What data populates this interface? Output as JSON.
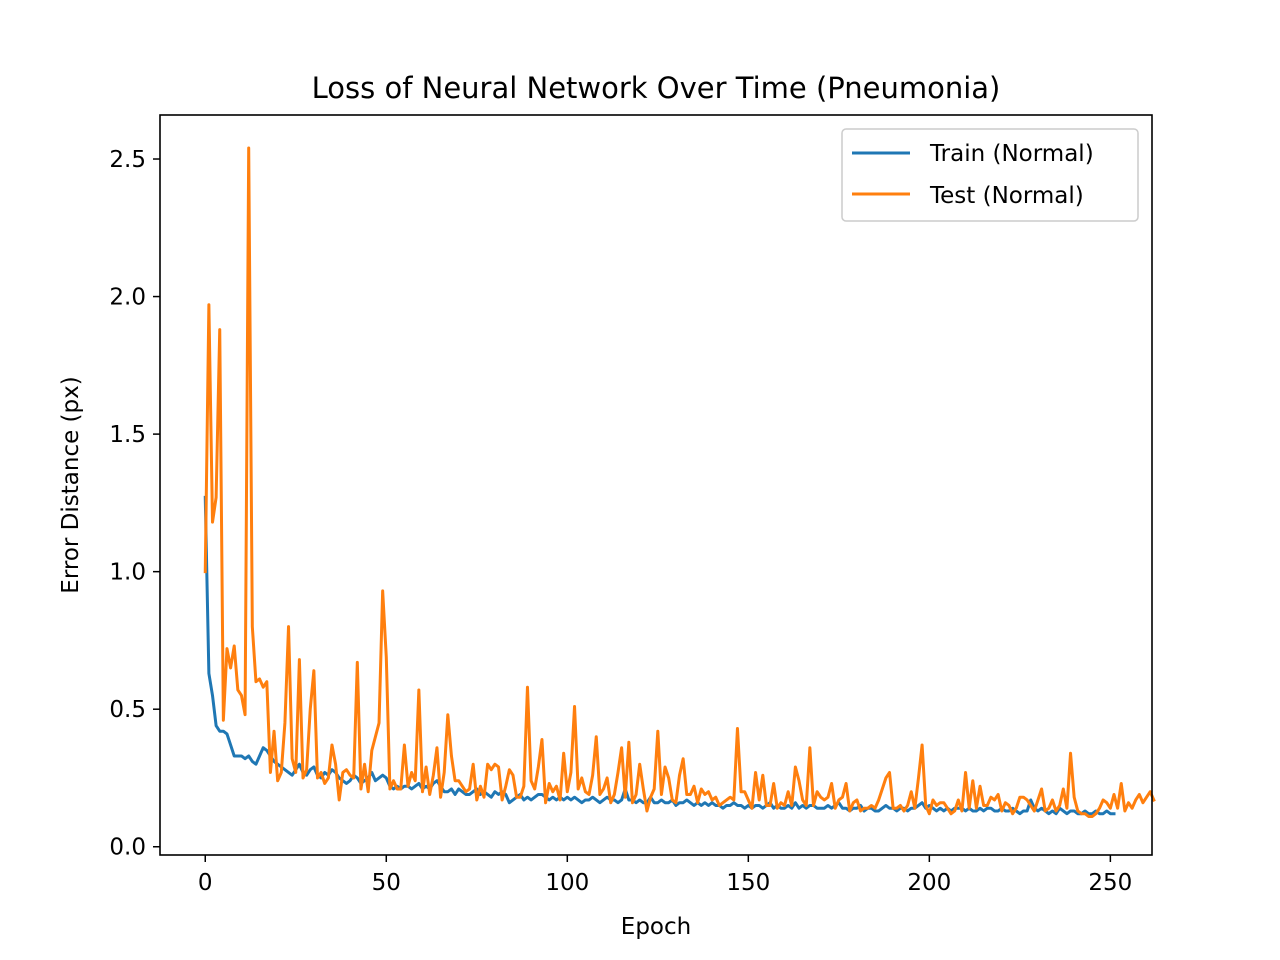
{
  "chart_data": {
    "type": "line",
    "title": "Loss of Neural Network Over Time (Pneumonia)",
    "xlabel": "Epoch",
    "ylabel": "Error Distance (px)",
    "xlim": [
      -12.5,
      261.5
    ],
    "ylim": [
      -0.03,
      2.66
    ],
    "xticks": [
      0,
      50,
      100,
      150,
      200,
      250
    ],
    "yticks": [
      0.0,
      0.5,
      1.0,
      1.5,
      2.0,
      2.5
    ],
    "xtick_labels": [
      "0",
      "50",
      "100",
      "150",
      "200",
      "250"
    ],
    "ytick_labels": [
      "0.0",
      "0.5",
      "1.0",
      "1.5",
      "2.0",
      "2.5"
    ],
    "grid": false,
    "legend_position": "upper right",
    "x_range": [
      0,
      249
    ],
    "series": [
      {
        "name": "Train (Normal)",
        "color": "#1f77b4",
        "values": [
          1.27,
          0.63,
          0.55,
          0.44,
          0.42,
          0.42,
          0.41,
          0.37,
          0.33,
          0.33,
          0.33,
          0.32,
          0.33,
          0.31,
          0.3,
          0.33,
          0.36,
          0.35,
          0.33,
          0.31,
          0.3,
          0.29,
          0.28,
          0.27,
          0.26,
          0.28,
          0.3,
          0.27,
          0.26,
          0.28,
          0.29,
          0.26,
          0.25,
          0.27,
          0.26,
          0.28,
          0.27,
          0.25,
          0.24,
          0.23,
          0.24,
          0.26,
          0.25,
          0.23,
          0.24,
          0.25,
          0.27,
          0.24,
          0.25,
          0.26,
          0.25,
          0.22,
          0.21,
          0.22,
          0.21,
          0.22,
          0.22,
          0.21,
          0.22,
          0.23,
          0.21,
          0.22,
          0.21,
          0.23,
          0.24,
          0.22,
          0.2,
          0.2,
          0.21,
          0.19,
          0.21,
          0.2,
          0.19,
          0.19,
          0.2,
          0.21,
          0.19,
          0.2,
          0.19,
          0.18,
          0.2,
          0.19,
          0.2,
          0.19,
          0.16,
          0.17,
          0.18,
          0.19,
          0.17,
          0.18,
          0.17,
          0.18,
          0.19,
          0.19,
          0.18,
          0.17,
          0.18,
          0.17,
          0.18,
          0.17,
          0.18,
          0.17,
          0.18,
          0.17,
          0.16,
          0.17,
          0.17,
          0.18,
          0.17,
          0.16,
          0.17,
          0.18,
          0.17,
          0.17,
          0.16,
          0.17,
          0.21,
          0.17,
          0.17,
          0.16,
          0.17,
          0.16,
          0.16,
          0.18,
          0.16,
          0.16,
          0.17,
          0.16,
          0.16,
          0.17,
          0.15,
          0.16,
          0.16,
          0.17,
          0.16,
          0.15,
          0.16,
          0.15,
          0.16,
          0.15,
          0.16,
          0.15,
          0.15,
          0.14,
          0.15,
          0.15,
          0.16,
          0.15,
          0.15,
          0.14,
          0.15,
          0.14,
          0.15,
          0.15,
          0.14,
          0.15,
          0.16,
          0.14,
          0.15,
          0.14,
          0.14,
          0.15,
          0.14,
          0.16,
          0.14,
          0.15,
          0.14,
          0.15,
          0.15,
          0.14,
          0.14,
          0.14,
          0.15,
          0.14,
          0.15,
          0.16,
          0.14,
          0.14,
          0.13,
          0.14,
          0.14,
          0.15,
          0.13,
          0.14,
          0.14,
          0.13,
          0.13,
          0.14,
          0.15,
          0.14,
          0.14,
          0.13,
          0.14,
          0.14,
          0.13,
          0.14,
          0.14,
          0.15,
          0.16,
          0.14,
          0.15,
          0.14,
          0.13,
          0.14,
          0.13,
          0.14,
          0.13,
          0.14,
          0.14,
          0.14,
          0.13,
          0.14,
          0.13,
          0.13,
          0.14,
          0.13,
          0.14,
          0.14,
          0.13,
          0.13,
          0.14,
          0.13,
          0.13,
          0.14,
          0.13,
          0.12,
          0.13,
          0.13,
          0.17,
          0.14,
          0.13,
          0.14,
          0.13,
          0.12,
          0.13,
          0.12,
          0.14,
          0.13,
          0.12,
          0.13,
          0.13,
          0.12,
          0.12,
          0.13,
          0.12,
          0.12,
          0.13,
          0.12,
          0.12,
          0.13,
          0.12,
          0.12
        ]
      },
      {
        "name": "Test (Normal)",
        "color": "#ff7f0e",
        "values": [
          1.0,
          1.97,
          1.18,
          1.27,
          1.88,
          0.46,
          0.72,
          0.65,
          0.73,
          0.57,
          0.55,
          0.48,
          2.54,
          0.8,
          0.6,
          0.61,
          0.58,
          0.6,
          0.27,
          0.42,
          0.24,
          0.27,
          0.45,
          0.8,
          0.32,
          0.27,
          0.68,
          0.25,
          0.28,
          0.5,
          0.64,
          0.25,
          0.27,
          0.23,
          0.25,
          0.37,
          0.3,
          0.17,
          0.27,
          0.28,
          0.26,
          0.25,
          0.67,
          0.21,
          0.3,
          0.2,
          0.35,
          0.4,
          0.45,
          0.93,
          0.69,
          0.21,
          0.24,
          0.21,
          0.21,
          0.37,
          0.22,
          0.27,
          0.24,
          0.57,
          0.2,
          0.29,
          0.19,
          0.26,
          0.36,
          0.18,
          0.27,
          0.48,
          0.33,
          0.24,
          0.24,
          0.22,
          0.2,
          0.21,
          0.3,
          0.17,
          0.22,
          0.18,
          0.3,
          0.28,
          0.3,
          0.29,
          0.17,
          0.22,
          0.28,
          0.26,
          0.18,
          0.18,
          0.22,
          0.58,
          0.24,
          0.21,
          0.29,
          0.39,
          0.16,
          0.23,
          0.2,
          0.22,
          0.17,
          0.34,
          0.2,
          0.27,
          0.51,
          0.21,
          0.25,
          0.2,
          0.19,
          0.26,
          0.4,
          0.19,
          0.21,
          0.25,
          0.16,
          0.19,
          0.27,
          0.36,
          0.18,
          0.38,
          0.16,
          0.19,
          0.3,
          0.21,
          0.13,
          0.18,
          0.21,
          0.42,
          0.19,
          0.29,
          0.25,
          0.17,
          0.16,
          0.26,
          0.32,
          0.19,
          0.19,
          0.22,
          0.16,
          0.21,
          0.19,
          0.2,
          0.17,
          0.18,
          0.15,
          0.16,
          0.17,
          0.18,
          0.17,
          0.43,
          0.2,
          0.2,
          0.17,
          0.14,
          0.27,
          0.17,
          0.26,
          0.15,
          0.15,
          0.23,
          0.14,
          0.16,
          0.15,
          0.2,
          0.15,
          0.29,
          0.24,
          0.17,
          0.15,
          0.36,
          0.15,
          0.2,
          0.18,
          0.17,
          0.18,
          0.23,
          0.14,
          0.17,
          0.18,
          0.23,
          0.13,
          0.16,
          0.17,
          0.13,
          0.14,
          0.14,
          0.15,
          0.14,
          0.17,
          0.21,
          0.25,
          0.27,
          0.14,
          0.14,
          0.15,
          0.13,
          0.15,
          0.2,
          0.14,
          0.25,
          0.37,
          0.15,
          0.12,
          0.17,
          0.15,
          0.16,
          0.16,
          0.14,
          0.12,
          0.13,
          0.17,
          0.13,
          0.27,
          0.14,
          0.24,
          0.14,
          0.22,
          0.15,
          0.15,
          0.18,
          0.17,
          0.19,
          0.13,
          0.16,
          0.15,
          0.12,
          0.14,
          0.18,
          0.18,
          0.17,
          0.15,
          0.13,
          0.17,
          0.21,
          0.13,
          0.14,
          0.17,
          0.13,
          0.15,
          0.21,
          0.14,
          0.34,
          0.18,
          0.13,
          0.12,
          0.12,
          0.11,
          0.11,
          0.12,
          0.14,
          0.17,
          0.16,
          0.14,
          0.19,
          0.14,
          0.23,
          0.13,
          0.16,
          0.14,
          0.17,
          0.19,
          0.16,
          0.18,
          0.2,
          0.17
        ]
      }
    ]
  }
}
